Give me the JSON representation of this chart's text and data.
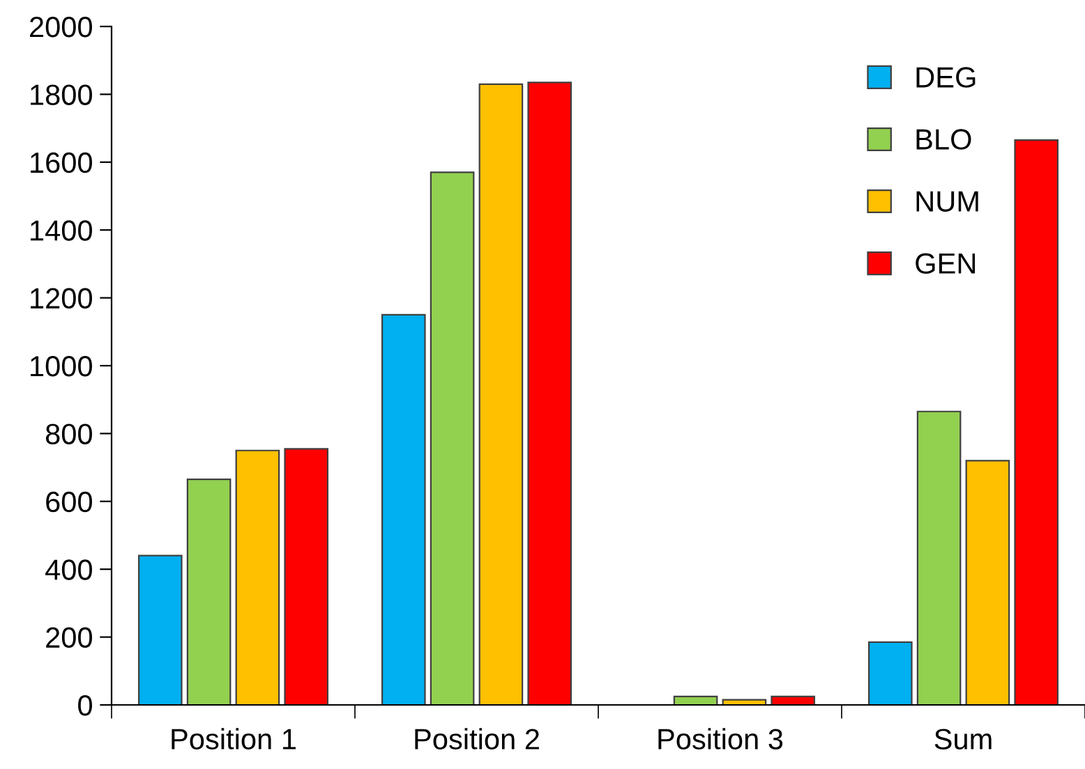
{
  "chart_data": {
    "type": "bar",
    "categories": [
      "Position 1",
      "Position 2",
      "Position 3",
      "Sum"
    ],
    "series": [
      {
        "name": "DEG",
        "color": "#00b0f0",
        "values": [
          440,
          1150,
          null,
          185
        ]
      },
      {
        "name": "BLO",
        "color": "#92d050",
        "values": [
          665,
          1570,
          25,
          865
        ]
      },
      {
        "name": "NUM",
        "color": "#ffc000",
        "values": [
          750,
          1830,
          15,
          720
        ]
      },
      {
        "name": "GEN",
        "color": "#ff0000",
        "values": [
          755,
          1835,
          25,
          1665
        ]
      }
    ],
    "ylim": [
      0,
      2000
    ],
    "yticks": [
      0,
      200,
      400,
      600,
      800,
      1000,
      1200,
      1400,
      1600,
      1800,
      2000
    ],
    "grid": false,
    "legend": "top right"
  }
}
